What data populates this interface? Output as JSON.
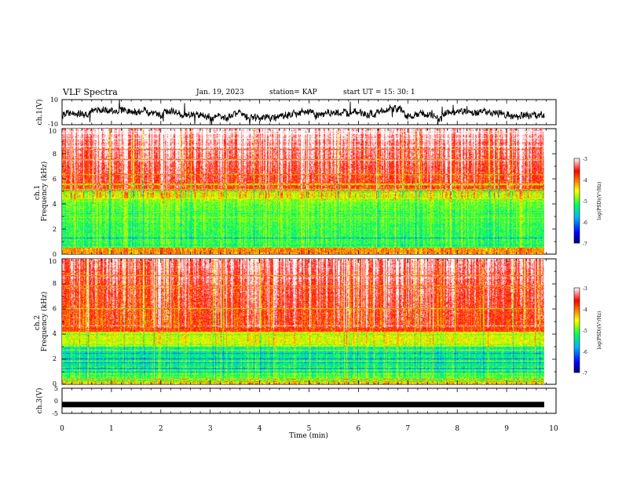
{
  "header": {
    "title": "VLF Spectra",
    "date": "Jan. 19, 2023",
    "station": "station= KAP",
    "start": "start UT =  15: 30: 1"
  },
  "colors": {
    "colormap": [
      "#00007a",
      "#0000ff",
      "#00b4ff",
      "#00ff64",
      "#a0ff00",
      "#ffff00",
      "#ff8c00",
      "#ff0000",
      "#ffffff"
    ]
  },
  "chart_data": [
    {
      "type": "line",
      "name": "ch1-waveform",
      "ylabel": "ch.1(V)",
      "ylim": [
        -10,
        10
      ],
      "yticks": [
        "10",
        "-10"
      ],
      "xlim": [
        0,
        10
      ]
    },
    {
      "type": "heatmap",
      "name": "ch1-spectrogram",
      "ylabel": "ch.1\nFrequency  (kHz)",
      "ylim": [
        0,
        10
      ],
      "yticks": [
        "0",
        "2",
        "4",
        "6",
        "8",
        "10"
      ],
      "xlim": [
        0,
        9.8
      ],
      "colorbar": {
        "label": "log(PSD)(V²/Hz)",
        "ticks": [
          "-3",
          "-4",
          "-5",
          "-6",
          "-7"
        ],
        "range": [
          -7,
          -3
        ]
      }
    },
    {
      "type": "heatmap",
      "name": "ch2-spectrogram",
      "ylabel": "ch.2\nFrequency  (kHz)",
      "ylim": [
        0,
        10
      ],
      "yticks": [
        "0",
        "2",
        "4",
        "6",
        "8",
        "10"
      ],
      "xlim": [
        0,
        9.8
      ],
      "colorbar": {
        "label": "log(PSD)(V²/Hz)",
        "ticks": [
          "-3",
          "-4",
          "-5",
          "-6",
          "-7"
        ],
        "range": [
          -7,
          -3
        ]
      }
    },
    {
      "type": "line",
      "name": "ch3-waveform",
      "ylabel": "ch.3(V)",
      "ylim": [
        -5,
        5
      ],
      "yticks": [
        "5",
        "0",
        "-5"
      ],
      "values_summary": "near-constant at about -1.5 V",
      "level": -1.5
    }
  ],
  "xaxis": {
    "label": "Time  (min)",
    "ticks": [
      "0",
      "1",
      "2",
      "3",
      "4",
      "5",
      "6",
      "7",
      "8",
      "9",
      "10"
    ],
    "xlim": [
      0,
      10
    ]
  }
}
